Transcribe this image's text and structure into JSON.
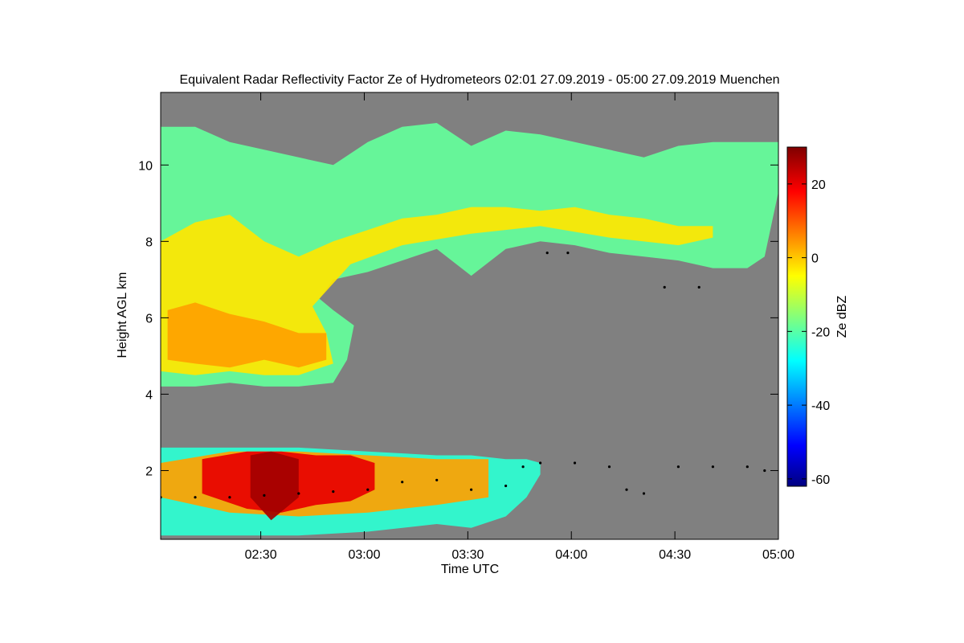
{
  "chart_data": {
    "type": "heatmap",
    "title": "Equivalent Radar Reflectivity Factor Ze of Hydrometeors   02:01 27.09.2019 - 05:00 27.09.2019 Muenchen",
    "xlabel": "Time UTC",
    "ylabel": "Height AGL km",
    "x_ticks": [
      "02:30",
      "03:00",
      "03:30",
      "04:00",
      "04:30",
      "05:00"
    ],
    "x_tick_minutes": [
      29,
      59,
      89,
      119,
      149,
      179
    ],
    "xlim_minutes": [
      0,
      179
    ],
    "y_ticks": [
      2,
      4,
      6,
      8,
      10
    ],
    "ylim": [
      0.2,
      11.9
    ],
    "background_color": "#808080",
    "colorbar": {
      "label": "Ze dBZ",
      "ticks": [
        20,
        0,
        -20,
        -40,
        -60
      ],
      "range": [
        -62,
        30
      ],
      "colormap": [
        "#000080",
        "#0000ff",
        "#00ffff",
        "#ffff00",
        "#ff0000",
        "#800000"
      ]
    },
    "regions": [
      {
        "name": "upper-cirrus",
        "dbz": -18,
        "top": [
          [
            0,
            11.0
          ],
          [
            10,
            11.0
          ],
          [
            20,
            10.6
          ],
          [
            30,
            10.4
          ],
          [
            40,
            10.2
          ],
          [
            50,
            10.0
          ],
          [
            60,
            10.6
          ],
          [
            70,
            11.0
          ],
          [
            80,
            11.1
          ],
          [
            90,
            10.5
          ],
          [
            100,
            10.9
          ],
          [
            110,
            10.8
          ],
          [
            120,
            10.6
          ],
          [
            130,
            10.4
          ],
          [
            140,
            10.2
          ],
          [
            150,
            10.5
          ],
          [
            160,
            10.6
          ],
          [
            170,
            10.6
          ],
          [
            179,
            10.6
          ]
        ],
        "bottom": [
          [
            0,
            4.2
          ],
          [
            10,
            4.2
          ],
          [
            20,
            4.3
          ],
          [
            30,
            4.2
          ],
          [
            40,
            4.2
          ],
          [
            50,
            4.3
          ],
          [
            54,
            4.9
          ],
          [
            56,
            5.8
          ],
          [
            50,
            6.2
          ],
          [
            46,
            6.5
          ],
          [
            50,
            7.0
          ],
          [
            60,
            7.2
          ],
          [
            70,
            7.5
          ],
          [
            80,
            7.8
          ],
          [
            90,
            7.1
          ],
          [
            100,
            7.8
          ],
          [
            110,
            8.0
          ],
          [
            120,
            7.9
          ],
          [
            130,
            7.7
          ],
          [
            140,
            7.6
          ],
          [
            150,
            7.5
          ],
          [
            160,
            7.3
          ],
          [
            170,
            7.3
          ],
          [
            175,
            7.6
          ],
          [
            179,
            9.3
          ]
        ]
      },
      {
        "name": "upper-cirrus-core",
        "dbz": -5,
        "top": [
          [
            0,
            8.0
          ],
          [
            10,
            8.5
          ],
          [
            20,
            8.7
          ],
          [
            30,
            8.0
          ],
          [
            40,
            7.6
          ],
          [
            50,
            8.0
          ],
          [
            60,
            8.3
          ],
          [
            70,
            8.6
          ],
          [
            80,
            8.7
          ],
          [
            90,
            8.9
          ],
          [
            100,
            8.9
          ],
          [
            110,
            8.8
          ],
          [
            120,
            8.9
          ],
          [
            130,
            8.7
          ],
          [
            140,
            8.6
          ],
          [
            150,
            8.4
          ],
          [
            160,
            8.4
          ]
        ],
        "bottom": [
          [
            0,
            4.6
          ],
          [
            10,
            4.5
          ],
          [
            20,
            4.6
          ],
          [
            30,
            4.5
          ],
          [
            40,
            4.5
          ],
          [
            50,
            4.8
          ],
          [
            48,
            5.6
          ],
          [
            44,
            6.3
          ],
          [
            55,
            7.4
          ],
          [
            70,
            7.9
          ],
          [
            90,
            8.2
          ],
          [
            110,
            8.4
          ],
          [
            130,
            8.1
          ],
          [
            150,
            7.9
          ],
          [
            160,
            8.1
          ]
        ]
      },
      {
        "name": "upper-yellow-core",
        "dbz": 0,
        "top": [
          [
            2,
            6.2
          ],
          [
            10,
            6.4
          ],
          [
            20,
            6.1
          ],
          [
            30,
            5.9
          ],
          [
            40,
            5.6
          ],
          [
            48,
            5.6
          ]
        ],
        "bottom": [
          [
            2,
            4.9
          ],
          [
            10,
            4.8
          ],
          [
            20,
            4.7
          ],
          [
            30,
            4.9
          ],
          [
            40,
            4.7
          ],
          [
            48,
            4.9
          ]
        ]
      },
      {
        "name": "lower-cloud",
        "dbz": -22,
        "top": [
          [
            0,
            2.6
          ],
          [
            20,
            2.6
          ],
          [
            40,
            2.6
          ],
          [
            60,
            2.5
          ],
          [
            80,
            2.4
          ],
          [
            90,
            2.4
          ],
          [
            100,
            2.3
          ],
          [
            106,
            2.3
          ],
          [
            110,
            2.2
          ]
        ],
        "bottom": [
          [
            0,
            0.3
          ],
          [
            20,
            0.3
          ],
          [
            40,
            0.3
          ],
          [
            60,
            0.4
          ],
          [
            80,
            0.6
          ],
          [
            90,
            0.5
          ],
          [
            100,
            0.8
          ],
          [
            106,
            1.3
          ],
          [
            110,
            1.9
          ]
        ]
      },
      {
        "name": "lower-cloud-mid",
        "dbz": 0,
        "top": [
          [
            0,
            2.2
          ],
          [
            20,
            2.5
          ],
          [
            40,
            2.5
          ],
          [
            60,
            2.4
          ],
          [
            80,
            2.3
          ],
          [
            95,
            2.3
          ]
        ],
        "bottom": [
          [
            0,
            1.3
          ],
          [
            20,
            0.9
          ],
          [
            40,
            0.8
          ],
          [
            60,
            0.9
          ],
          [
            80,
            1.1
          ],
          [
            95,
            1.3
          ]
        ]
      },
      {
        "name": "lower-cloud-core",
        "dbz": 15,
        "top": [
          [
            12,
            2.3
          ],
          [
            25,
            2.5
          ],
          [
            35,
            2.5
          ],
          [
            45,
            2.4
          ],
          [
            55,
            2.4
          ],
          [
            62,
            2.2
          ]
        ],
        "bottom": [
          [
            12,
            1.4
          ],
          [
            25,
            1.0
          ],
          [
            35,
            0.9
          ],
          [
            45,
            1.1
          ],
          [
            55,
            1.2
          ],
          [
            62,
            1.5
          ]
        ]
      },
      {
        "name": "lower-cloud-peak",
        "dbz": 25,
        "top": [
          [
            26,
            2.4
          ],
          [
            32,
            2.5
          ],
          [
            40,
            2.3
          ]
        ],
        "bottom": [
          [
            26,
            1.3
          ],
          [
            32,
            0.7
          ],
          [
            40,
            1.3
          ]
        ]
      }
    ],
    "cloud_base_points": [
      [
        0,
        1.3
      ],
      [
        10,
        1.3
      ],
      [
        20,
        1.3
      ],
      [
        30,
        1.35
      ],
      [
        40,
        1.4
      ],
      [
        50,
        1.45
      ],
      [
        60,
        1.5
      ],
      [
        70,
        1.7
      ],
      [
        80,
        1.75
      ],
      [
        90,
        1.5
      ],
      [
        100,
        1.6
      ],
      [
        105,
        2.1
      ],
      [
        110,
        2.2
      ],
      [
        120,
        2.2
      ],
      [
        130,
        2.1
      ],
      [
        135,
        1.5
      ],
      [
        140,
        1.4
      ],
      [
        150,
        2.1
      ],
      [
        160,
        2.1
      ],
      [
        170,
        2.1
      ],
      [
        175,
        2.0
      ],
      [
        112,
        7.7
      ],
      [
        118,
        7.7
      ],
      [
        146,
        6.8
      ],
      [
        156,
        6.8
      ]
    ]
  }
}
